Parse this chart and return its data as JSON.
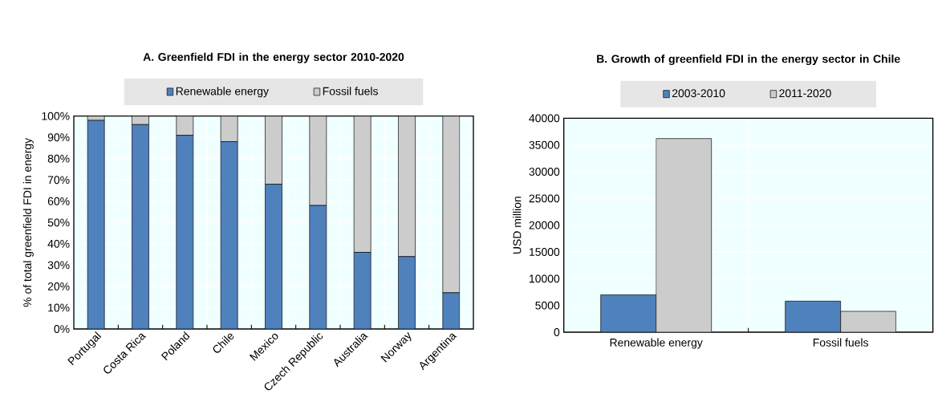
{
  "chart_data": [
    {
      "type": "bar",
      "title": "A. Greenfield FDI in the energy sector 2010-2020",
      "ylabel": "% of total greenfield FDI in energy",
      "stacked": true,
      "grid": true,
      "legend": "top",
      "categories": [
        "Portugal",
        "Costa Rica",
        "Poland",
        "Chile",
        "Mexico",
        "Czech Republic",
        "Australia",
        "Norway",
        "Argentina"
      ],
      "series": [
        {
          "name": "Renewable energy",
          "color": "#4f81bd",
          "values": [
            98,
            96,
            91,
            88,
            68,
            58,
            36,
            34,
            17
          ]
        },
        {
          "name": "Fossil fuels",
          "color": "#cccccc",
          "values": [
            2,
            4,
            9,
            12,
            32,
            42,
            64,
            66,
            83
          ]
        }
      ],
      "ylim": [
        0,
        100
      ],
      "yticks": [
        {
          "value": 0,
          "label": "0%"
        },
        {
          "value": 10,
          "label": "10%"
        },
        {
          "value": 20,
          "label": "20%"
        },
        {
          "value": 30,
          "label": "30%"
        },
        {
          "value": 40,
          "label": "40%"
        },
        {
          "value": 50,
          "label": "50%"
        },
        {
          "value": 60,
          "label": "60%"
        },
        {
          "value": 70,
          "label": "70%"
        },
        {
          "value": 80,
          "label": "80%"
        },
        {
          "value": 90,
          "label": "90%"
        },
        {
          "value": 100,
          "label": "100%"
        }
      ]
    },
    {
      "type": "bar",
      "title": "B. Growth of greenfield FDI in the energy sector in Chile",
      "ylabel": "USD million",
      "grid": true,
      "legend": "top",
      "categories": [
        "Renewable energy",
        "Fossil fuels"
      ],
      "series": [
        {
          "name": "2003-2010",
          "color": "#4f81bd",
          "values": [
            7000,
            5800
          ]
        },
        {
          "name": "2011-2020",
          "color": "#cccccc",
          "values": [
            36200,
            3900
          ]
        }
      ],
      "ylim": [
        0,
        40000
      ],
      "yticks": [
        0,
        5000,
        10000,
        15000,
        20000,
        25000,
        30000,
        35000,
        40000
      ]
    }
  ]
}
